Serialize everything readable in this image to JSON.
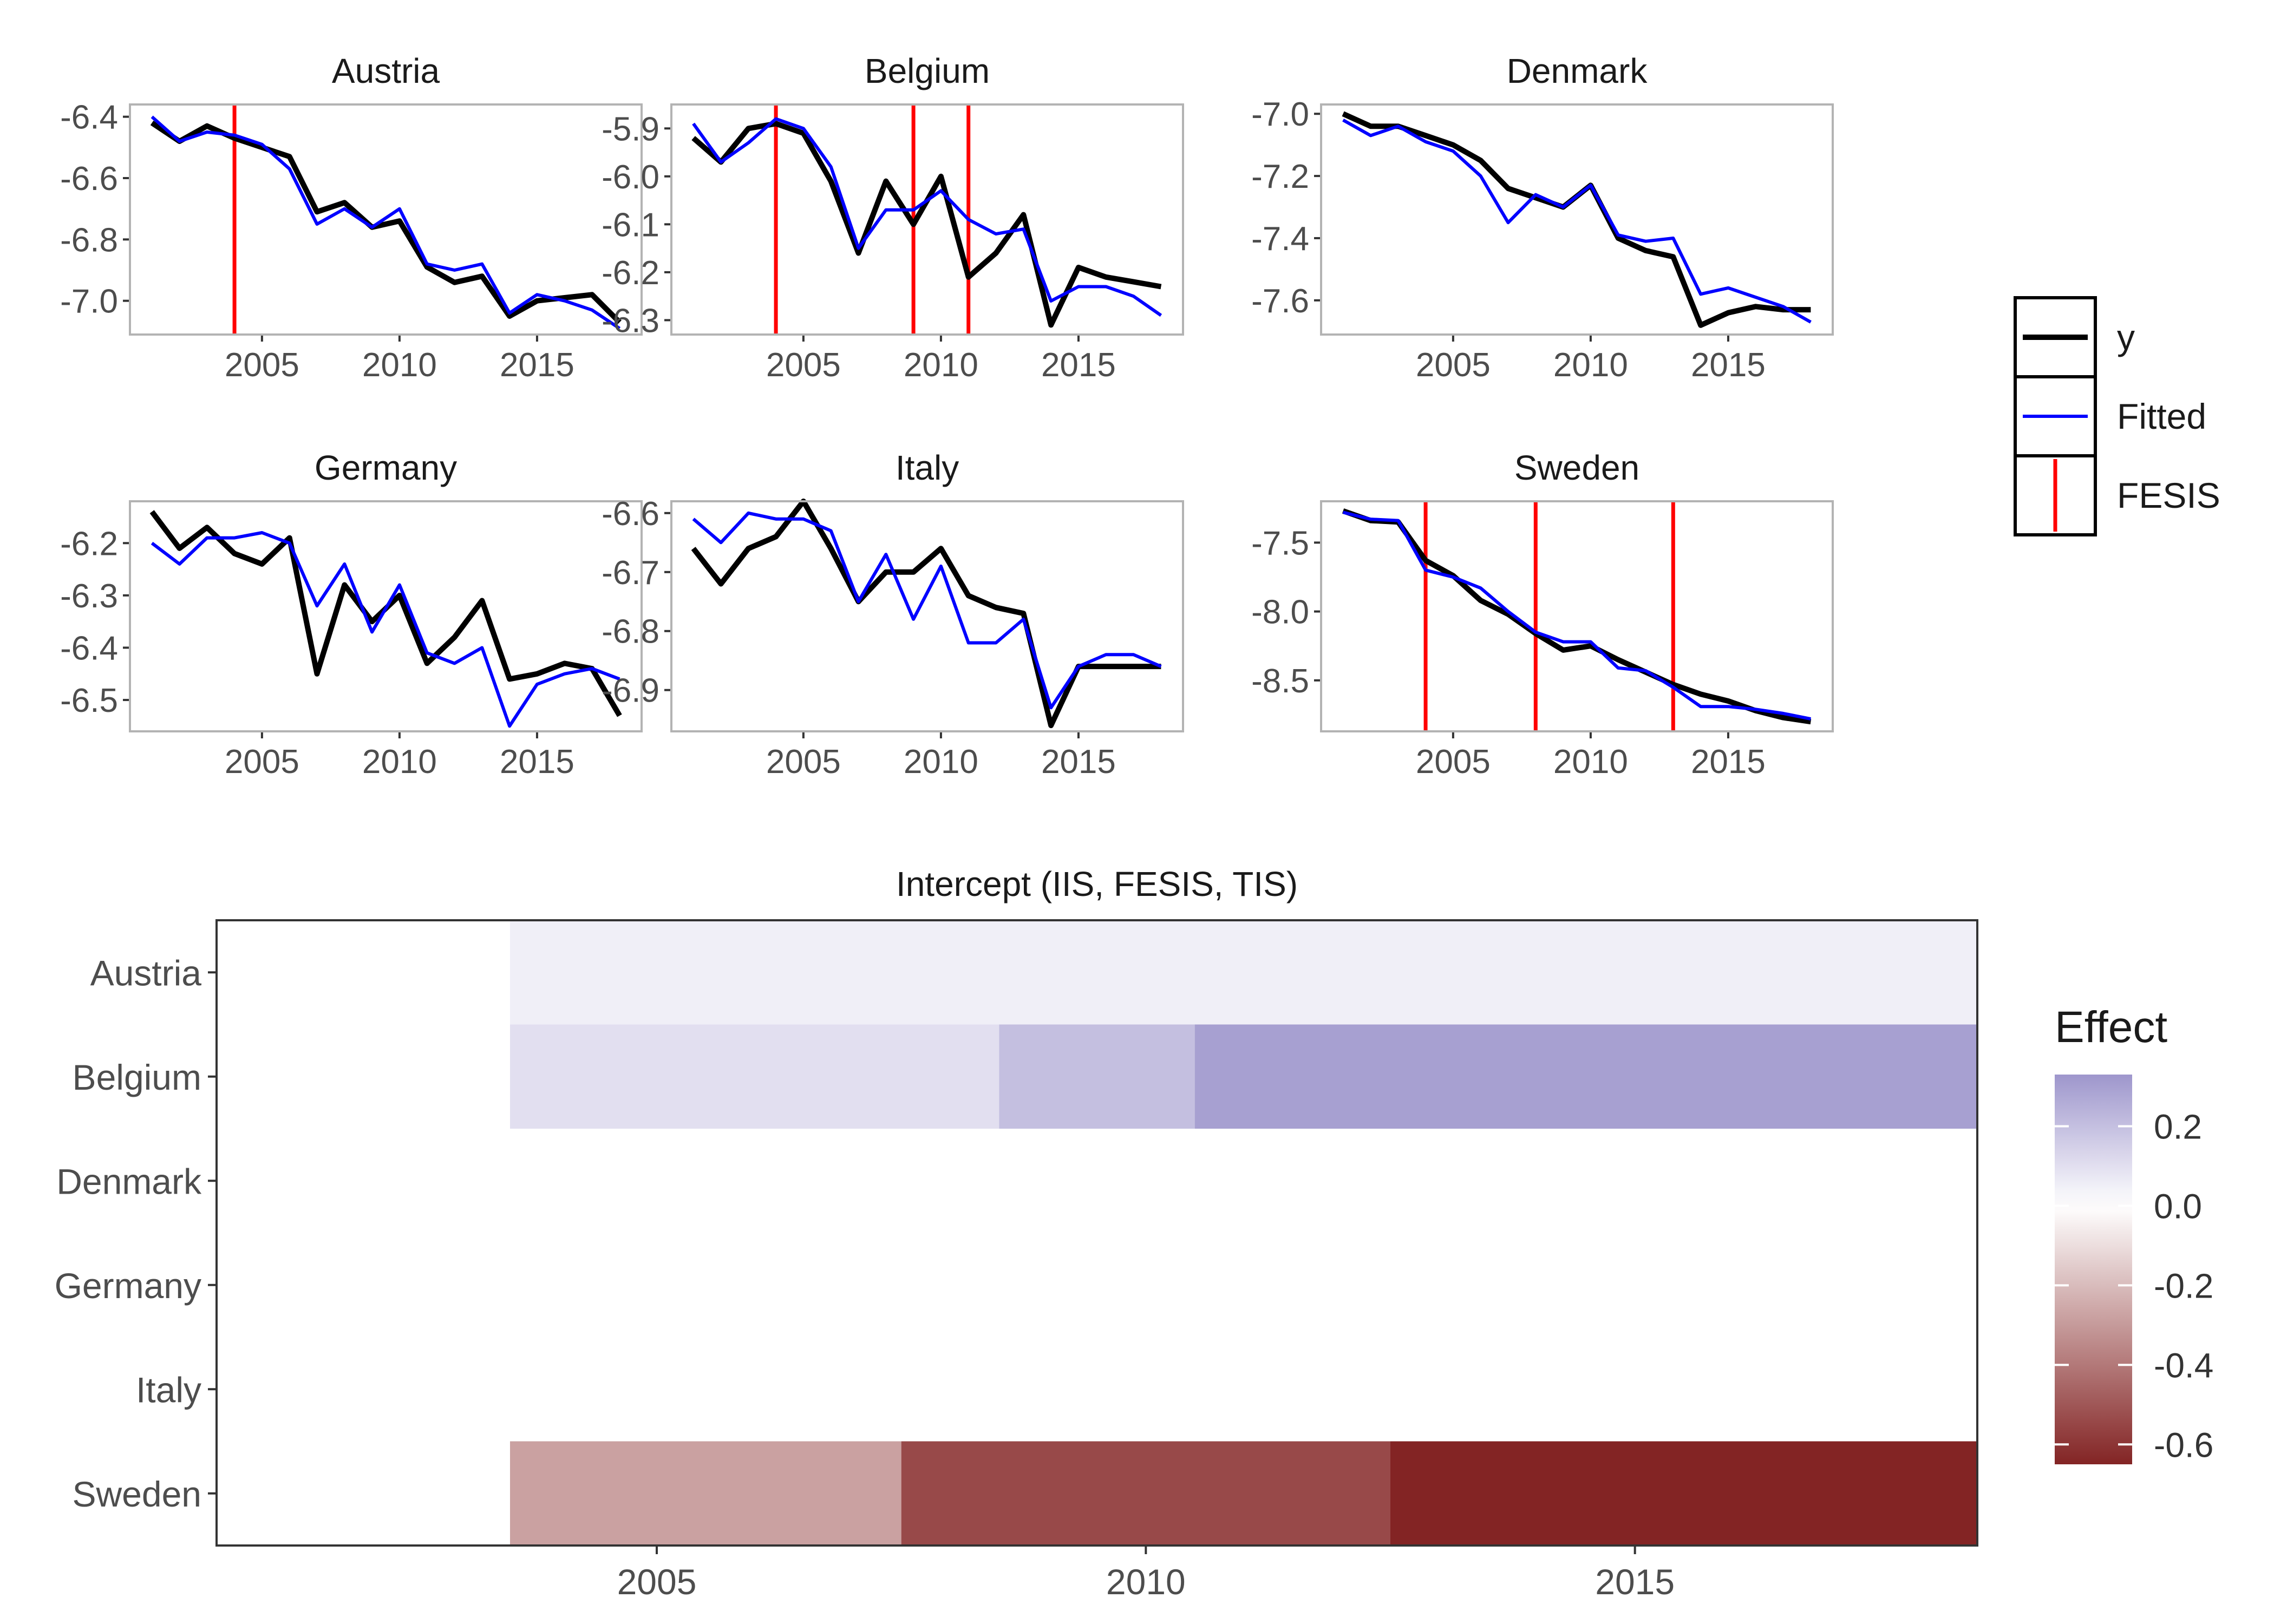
{
  "chart_data": [
    {
      "type": "line",
      "layout": "small-multiples",
      "x_label": "",
      "y_label": "",
      "x_ticks": [
        2005,
        2010,
        2015
      ],
      "legend": {
        "position": "right",
        "entries": [
          {
            "label": "y",
            "color": "#000000",
            "kind": "line"
          },
          {
            "label": "Fitted",
            "color": "#0000ff",
            "kind": "line"
          },
          {
            "label": "FESIS",
            "color": "#ff0000",
            "kind": "vline"
          }
        ]
      },
      "panels": [
        {
          "title": "Austria",
          "x": [
            2001,
            2002,
            2003,
            2004,
            2005,
            2006,
            2007,
            2008,
            2009,
            2010,
            2011,
            2012,
            2013,
            2014,
            2015,
            2016,
            2017,
            2018
          ],
          "xlim": [
            2000.2,
            2018.8
          ],
          "ylim": [
            -7.11,
            -6.36
          ],
          "y_ticks": [
            -6.4,
            -6.6,
            -6.8,
            -7.0
          ],
          "y_tick_labels": [
            "-6.4",
            "-6.6",
            "-6.8",
            "-7.0"
          ],
          "y": [
            -6.42,
            -6.48,
            -6.43,
            -6.47,
            -6.5,
            -6.53,
            -6.71,
            -6.68,
            -6.76,
            -6.74,
            -6.89,
            -6.94,
            -6.92,
            -7.05,
            -7.0,
            -6.99,
            -6.98,
            -7.07
          ],
          "fitted": [
            -6.4,
            -6.48,
            -6.45,
            -6.46,
            -6.49,
            -6.57,
            -6.75,
            -6.7,
            -6.76,
            -6.7,
            -6.88,
            -6.9,
            -6.88,
            -7.04,
            -6.98,
            -7.0,
            -7.03,
            -7.09
          ],
          "fesis": [
            2004
          ]
        },
        {
          "title": "Belgium",
          "x": [
            2001,
            2002,
            2003,
            2004,
            2005,
            2006,
            2007,
            2008,
            2009,
            2010,
            2011,
            2012,
            2013,
            2014,
            2015,
            2016,
            2017,
            2018
          ],
          "xlim": [
            2000.2,
            2018.8
          ],
          "ylim": [
            -6.33,
            -5.85
          ],
          "y_ticks": [
            -5.9,
            -6.0,
            -6.1,
            -6.2,
            -6.3
          ],
          "y_tick_labels": [
            "-5.9",
            "-6.0",
            "-6.1",
            "-6.2",
            "-6.3"
          ],
          "y": [
            -5.92,
            -5.97,
            -5.9,
            -5.89,
            -5.91,
            -6.01,
            -6.16,
            -6.01,
            -6.1,
            -6.0,
            -6.21,
            -6.16,
            -6.08,
            -6.31,
            -6.19,
            -6.21,
            -6.22,
            -6.23
          ],
          "fitted": [
            -5.89,
            -5.97,
            -5.93,
            -5.88,
            -5.9,
            -5.98,
            -6.15,
            -6.07,
            -6.07,
            -6.03,
            -6.09,
            -6.12,
            -6.11,
            -6.26,
            -6.23,
            -6.23,
            -6.25,
            -6.29
          ],
          "fesis": [
            2004,
            2009,
            2011
          ]
        },
        {
          "title": "Denmark",
          "x": [
            2001,
            2002,
            2003,
            2004,
            2005,
            2006,
            2007,
            2008,
            2009,
            2010,
            2011,
            2012,
            2013,
            2014,
            2015,
            2016,
            2017,
            2018
          ],
          "xlim": [
            2000.2,
            2018.8
          ],
          "ylim": [
            -7.71,
            -6.97
          ],
          "y_ticks": [
            -7.0,
            -7.2,
            -7.4,
            -7.6
          ],
          "y_tick_labels": [
            "-7.0",
            "-7.2",
            "-7.4",
            "-7.6"
          ],
          "y": [
            -7.0,
            -7.04,
            -7.04,
            -7.07,
            -7.1,
            -7.15,
            -7.24,
            -7.27,
            -7.3,
            -7.23,
            -7.4,
            -7.44,
            -7.46,
            -7.68,
            -7.64,
            -7.62,
            -7.63,
            -7.63
          ],
          "fitted": [
            -7.02,
            -7.07,
            -7.04,
            -7.09,
            -7.12,
            -7.2,
            -7.35,
            -7.26,
            -7.3,
            -7.23,
            -7.39,
            -7.41,
            -7.4,
            -7.58,
            -7.56,
            -7.59,
            -7.62,
            -7.67
          ],
          "fesis": []
        },
        {
          "title": "Germany",
          "x": [
            2001,
            2002,
            2003,
            2004,
            2005,
            2006,
            2007,
            2008,
            2009,
            2010,
            2011,
            2012,
            2013,
            2014,
            2015,
            2016,
            2017,
            2018
          ],
          "xlim": [
            2000.2,
            2018.8
          ],
          "ylim": [
            -6.56,
            -6.12
          ],
          "y_ticks": [
            -6.2,
            -6.3,
            -6.4,
            -6.5
          ],
          "y_tick_labels": [
            "-6.2",
            "-6.3",
            "-6.4",
            "-6.5"
          ],
          "y": [
            -6.14,
            -6.21,
            -6.17,
            -6.22,
            -6.24,
            -6.19,
            -6.45,
            -6.28,
            -6.35,
            -6.3,
            -6.43,
            -6.38,
            -6.31,
            -6.46,
            -6.45,
            -6.43,
            -6.44,
            -6.53
          ],
          "fitted": [
            -6.2,
            -6.24,
            -6.19,
            -6.19,
            -6.18,
            -6.2,
            -6.32,
            -6.24,
            -6.37,
            -6.28,
            -6.41,
            -6.43,
            -6.4,
            -6.55,
            -6.47,
            -6.45,
            -6.44,
            -6.46
          ],
          "fesis": []
        },
        {
          "title": "Italy",
          "x": [
            2001,
            2002,
            2003,
            2004,
            2005,
            2006,
            2007,
            2008,
            2009,
            2010,
            2011,
            2012,
            2013,
            2014,
            2015,
            2016,
            2017,
            2018
          ],
          "xlim": [
            2000.2,
            2018.8
          ],
          "ylim": [
            -6.97,
            -6.58
          ],
          "y_ticks": [
            -6.6,
            -6.7,
            -6.8,
            -6.9
          ],
          "y_tick_labels": [
            "-6.6",
            "-6.7",
            "-6.8",
            "-6.9"
          ],
          "y": [
            -6.66,
            -6.72,
            -6.66,
            -6.64,
            -6.58,
            -6.66,
            -6.75,
            -6.7,
            -6.7,
            -6.66,
            -6.74,
            -6.76,
            -6.77,
            -6.96,
            -6.86,
            -6.86,
            -6.86,
            -6.86
          ],
          "fitted": [
            -6.61,
            -6.65,
            -6.6,
            -6.61,
            -6.61,
            -6.63,
            -6.75,
            -6.67,
            -6.78,
            -6.69,
            -6.82,
            -6.82,
            -6.78,
            -6.93,
            -6.86,
            -6.84,
            -6.84,
            -6.86
          ],
          "fesis": []
        },
        {
          "title": "Sweden",
          "x": [
            2001,
            2002,
            2003,
            2004,
            2005,
            2006,
            2007,
            2008,
            2009,
            2010,
            2011,
            2012,
            2013,
            2014,
            2015,
            2016,
            2017,
            2018
          ],
          "xlim": [
            2000.2,
            2018.8
          ],
          "ylim": [
            -8.87,
            -7.2
          ],
          "y_ticks": [
            -7.5,
            -8.0,
            -8.5
          ],
          "y_tick_labels": [
            "-7.5",
            "-8.0",
            "-8.5"
          ],
          "y": [
            -7.27,
            -7.34,
            -7.35,
            -7.63,
            -7.74,
            -7.92,
            -8.02,
            -8.16,
            -8.28,
            -8.25,
            -8.35,
            -8.44,
            -8.53,
            -8.6,
            -8.65,
            -8.72,
            -8.77,
            -8.8
          ],
          "fitted": [
            -7.28,
            -7.33,
            -7.34,
            -7.7,
            -7.75,
            -7.83,
            -8.0,
            -8.15,
            -8.22,
            -8.22,
            -8.41,
            -8.43,
            -8.55,
            -8.69,
            -8.69,
            -8.71,
            -8.74,
            -8.78
          ],
          "fesis": [
            2004,
            2008,
            2013
          ]
        }
      ]
    },
    {
      "type": "heatmap",
      "title": "Intercept (IIS, FESIS, TIS)",
      "x_label": "",
      "y_label": "",
      "xlim": [
        2000.5,
        2018.5
      ],
      "x_ticks": [
        2005,
        2010,
        2015
      ],
      "rows": [
        "Austria",
        "Belgium",
        "Denmark",
        "Germany",
        "Italy",
        "Sweden"
      ],
      "segments": [
        {
          "row": "Austria",
          "from": 2003.5,
          "to": 2018.5,
          "value": 0.05
        },
        {
          "row": "Belgium",
          "from": 2003.5,
          "to": 2008.5,
          "value": 0.1
        },
        {
          "row": "Belgium",
          "from": 2008.5,
          "to": 2010.5,
          "value": 0.2
        },
        {
          "row": "Belgium",
          "from": 2010.5,
          "to": 2018.5,
          "value": 0.3
        },
        {
          "row": "Sweden",
          "from": 2003.5,
          "to": 2007.5,
          "value": -0.28
        },
        {
          "row": "Sweden",
          "from": 2007.5,
          "to": 2012.5,
          "value": -0.54
        },
        {
          "row": "Sweden",
          "from": 2012.5,
          "to": 2018.5,
          "value": -0.65
        }
      ],
      "colorbar": {
        "title": "Effect",
        "position": "right",
        "range": [
          -0.65,
          0.33
        ],
        "ticks": [
          0.2,
          0.0,
          -0.2,
          -0.4,
          -0.6
        ],
        "tick_labels": [
          "0.2",
          "0.0",
          "-0.2",
          "-0.4",
          "-0.6"
        ],
        "colors": {
          "low": "#832424",
          "mid": "#ffffff",
          "high": "#9e96cc"
        }
      }
    }
  ]
}
